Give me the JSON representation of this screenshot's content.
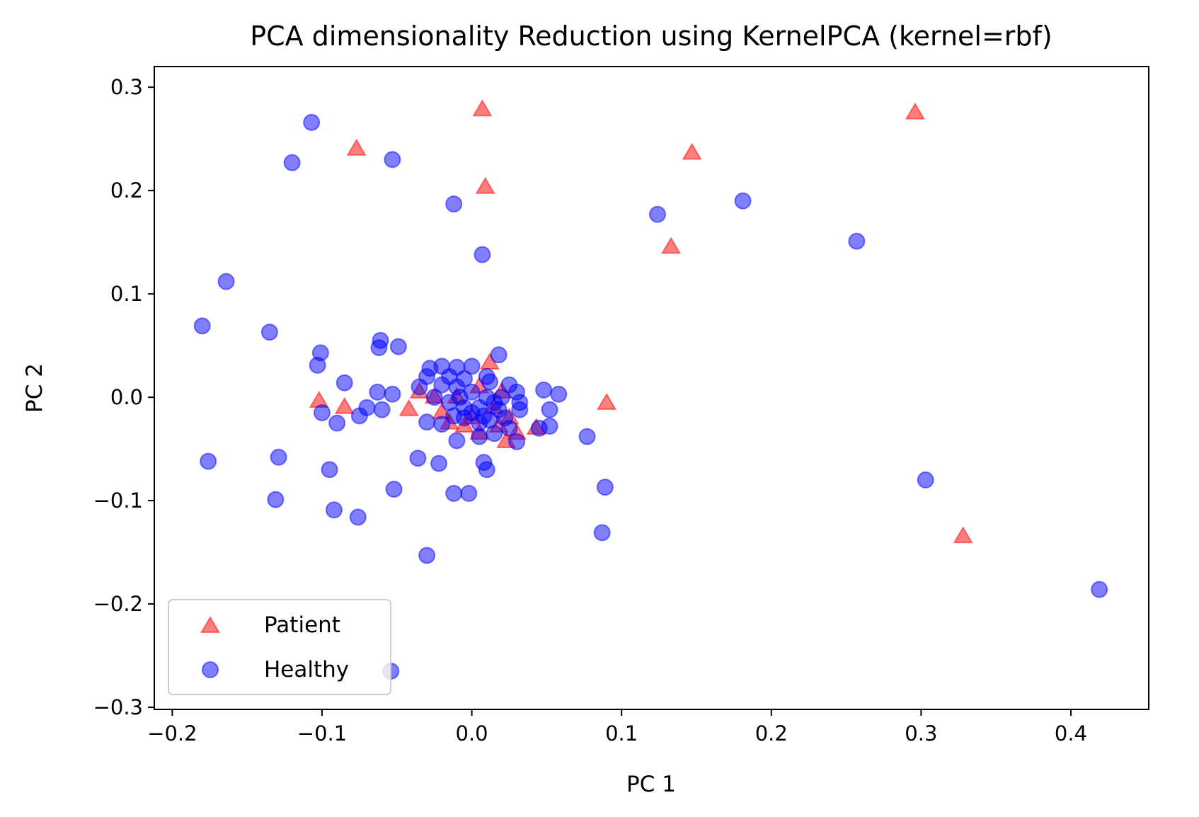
{
  "chart_data": {
    "type": "scatter",
    "title": "PCA dimensionality Reduction using KernelPCA (kernel=rbf)",
    "xlabel": "PC 1",
    "ylabel": "PC 2",
    "xlim": [
      -0.212,
      0.452
    ],
    "ylim": [
      -0.302,
      0.32
    ],
    "xticks": [
      -0.2,
      -0.1,
      0.0,
      0.1,
      0.2,
      0.3,
      0.4
    ],
    "xtick_labels": [
      "−0.2",
      "−0.1",
      "0.0",
      "0.1",
      "0.2",
      "0.3",
      "0.4"
    ],
    "yticks": [
      -0.3,
      -0.2,
      -0.1,
      0.0,
      0.1,
      0.2,
      0.3
    ],
    "ytick_labels": [
      "−0.3",
      "−0.2",
      "−0.1",
      "0.0",
      "0.1",
      "0.2",
      "0.3"
    ],
    "grid": false,
    "legend_position": "lower-left",
    "series": [
      {
        "name": "Patient",
        "marker": "triangle",
        "color": "#ff0000",
        "alpha": 0.5,
        "points": [
          [
            0.007,
            0.278
          ],
          [
            0.296,
            0.275
          ],
          [
            -0.077,
            0.24
          ],
          [
            0.147,
            0.236
          ],
          [
            0.009,
            0.203
          ],
          [
            0.133,
            0.145
          ],
          [
            0.328,
            -0.135
          ],
          [
            -0.102,
            -0.004
          ],
          [
            -0.085,
            -0.01
          ],
          [
            0.09,
            -0.006
          ],
          [
            -0.042,
            -0.012
          ],
          [
            0.043,
            -0.03
          ],
          [
            0.023,
            -0.043
          ],
          [
            0.005,
            -0.035
          ],
          [
            0.012,
            0.033
          ],
          [
            -0.035,
            0.005
          ],
          [
            -0.02,
            -0.015
          ],
          [
            -0.015,
            -0.025
          ],
          [
            -0.005,
            -0.028
          ],
          [
            0.0,
            -0.02
          ],
          [
            0.015,
            -0.01
          ],
          [
            0.02,
            0.005
          ],
          [
            0.025,
            -0.02
          ],
          [
            0.03,
            -0.035
          ],
          [
            -0.01,
            0.0
          ],
          [
            0.005,
            0.01
          ],
          [
            -0.025,
            0.0
          ],
          [
            0.018,
            -0.028
          ]
        ]
      },
      {
        "name": "Healthy",
        "marker": "circle",
        "color": "#0000ff",
        "alpha": 0.5,
        "points": [
          [
            -0.107,
            0.266
          ],
          [
            -0.12,
            0.227
          ],
          [
            -0.053,
            0.23
          ],
          [
            -0.012,
            0.187
          ],
          [
            0.007,
            0.138
          ],
          [
            0.124,
            0.177
          ],
          [
            0.181,
            0.19
          ],
          [
            0.257,
            0.151
          ],
          [
            -0.164,
            0.112
          ],
          [
            -0.18,
            0.069
          ],
          [
            -0.135,
            0.063
          ],
          [
            -0.061,
            0.055
          ],
          [
            -0.062,
            0.048
          ],
          [
            -0.049,
            0.049
          ],
          [
            -0.101,
            0.043
          ],
          [
            -0.103,
            0.031
          ],
          [
            -0.085,
            0.014
          ],
          [
            -0.063,
            0.005
          ],
          [
            -0.053,
            0.003
          ],
          [
            -0.07,
            -0.01
          ],
          [
            -0.075,
            -0.018
          ],
          [
            -0.06,
            -0.012
          ],
          [
            -0.1,
            -0.015
          ],
          [
            -0.09,
            -0.025
          ],
          [
            0.048,
            0.007
          ],
          [
            0.058,
            0.003
          ],
          [
            0.052,
            -0.012
          ],
          [
            0.052,
            -0.028
          ],
          [
            0.045,
            -0.03
          ],
          [
            0.077,
            -0.038
          ],
          [
            -0.176,
            -0.062
          ],
          [
            -0.129,
            -0.058
          ],
          [
            -0.095,
            -0.07
          ],
          [
            -0.131,
            -0.099
          ],
          [
            -0.092,
            -0.109
          ],
          [
            -0.076,
            -0.116
          ],
          [
            -0.052,
            -0.089
          ],
          [
            -0.036,
            -0.059
          ],
          [
            -0.022,
            -0.064
          ],
          [
            -0.012,
            -0.093
          ],
          [
            -0.002,
            -0.093
          ],
          [
            0.008,
            -0.063
          ],
          [
            0.01,
            -0.07
          ],
          [
            -0.03,
            -0.153
          ],
          [
            0.089,
            -0.087
          ],
          [
            0.087,
            -0.131
          ],
          [
            0.303,
            -0.08
          ],
          [
            0.419,
            -0.186
          ],
          [
            -0.054,
            -0.265
          ],
          [
            0.018,
            0.041
          ],
          [
            -0.02,
            0.03
          ],
          [
            -0.01,
            0.029
          ],
          [
            0.0,
            0.03
          ],
          [
            0.01,
            0.02
          ],
          [
            -0.03,
            0.02
          ],
          [
            -0.035,
            0.01
          ],
          [
            -0.03,
            -0.024
          ],
          [
            -0.02,
            -0.026
          ],
          [
            -0.01,
            -0.042
          ],
          [
            0.005,
            -0.038
          ],
          [
            0.015,
            -0.035
          ],
          [
            0.025,
            -0.03
          ],
          [
            0.03,
            -0.043
          ],
          [
            0.025,
            0.012
          ],
          [
            0.03,
            0.005
          ],
          [
            0.032,
            -0.005
          ],
          [
            0.032,
            -0.012
          ],
          [
            -0.025,
            0.0
          ],
          [
            -0.015,
            -0.005
          ],
          [
            -0.005,
            -0.01
          ],
          [
            0.005,
            -0.01
          ],
          [
            0.015,
            -0.005
          ],
          [
            0.02,
            0.0
          ],
          [
            -0.01,
            0.01
          ],
          [
            0.0,
            0.005
          ],
          [
            0.01,
            0.0
          ],
          [
            -0.005,
            -0.02
          ],
          [
            0.005,
            -0.025
          ],
          [
            -0.02,
            0.012
          ],
          [
            0.012,
            0.015
          ],
          [
            -0.015,
            0.02
          ],
          [
            0.008,
            -0.018
          ],
          [
            -0.008,
            0.0
          ],
          [
            0.022,
            -0.02
          ],
          [
            -0.028,
            0.028
          ],
          [
            -0.005,
            0.018
          ],
          [
            0.018,
            -0.012
          ],
          [
            0.0,
            -0.015
          ],
          [
            -0.012,
            -0.018
          ],
          [
            0.012,
            -0.022
          ]
        ]
      }
    ]
  }
}
